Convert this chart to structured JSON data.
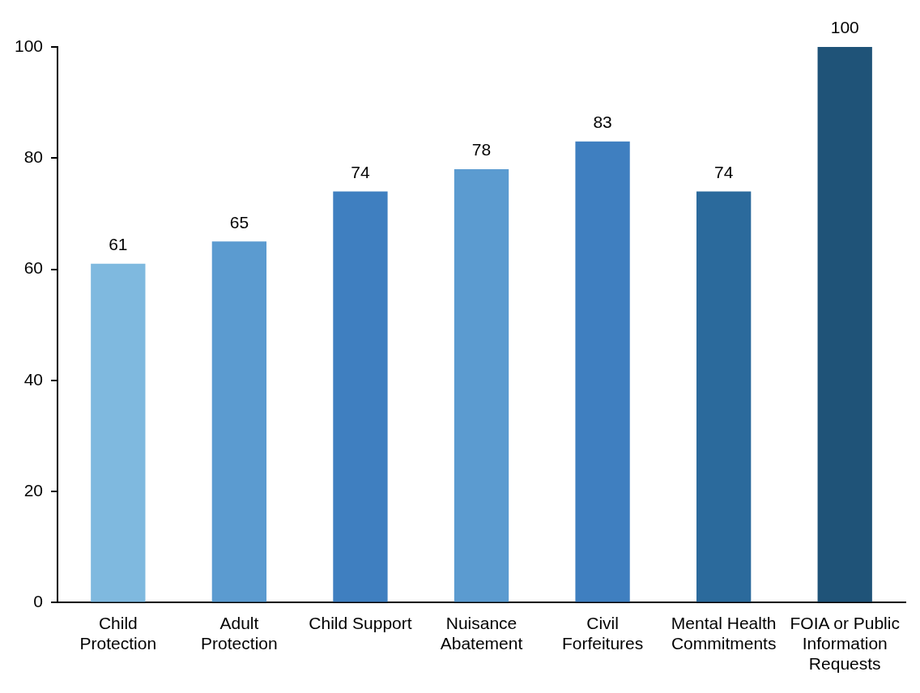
{
  "chart_data": {
    "type": "bar",
    "categories": [
      "Child Protection",
      "Adult Protection",
      "Child Support",
      "Nuisance Abatement",
      "Civil Forfeitures",
      "Mental Health Commitments",
      "FOIA or Public Information Requests"
    ],
    "values": [
      61,
      65,
      74,
      78,
      83,
      74,
      100
    ],
    "colors": [
      "#7fb9df",
      "#5b9bd0",
      "#3f7fc0",
      "#5b9bd0",
      "#3f7fc0",
      "#2b6a9c",
      "#1f5378"
    ],
    "ylim": [
      0,
      100
    ],
    "yticks": [
      0,
      20,
      40,
      60,
      80,
      100
    ],
    "data_labels": true,
    "legend": false,
    "grid": false
  }
}
